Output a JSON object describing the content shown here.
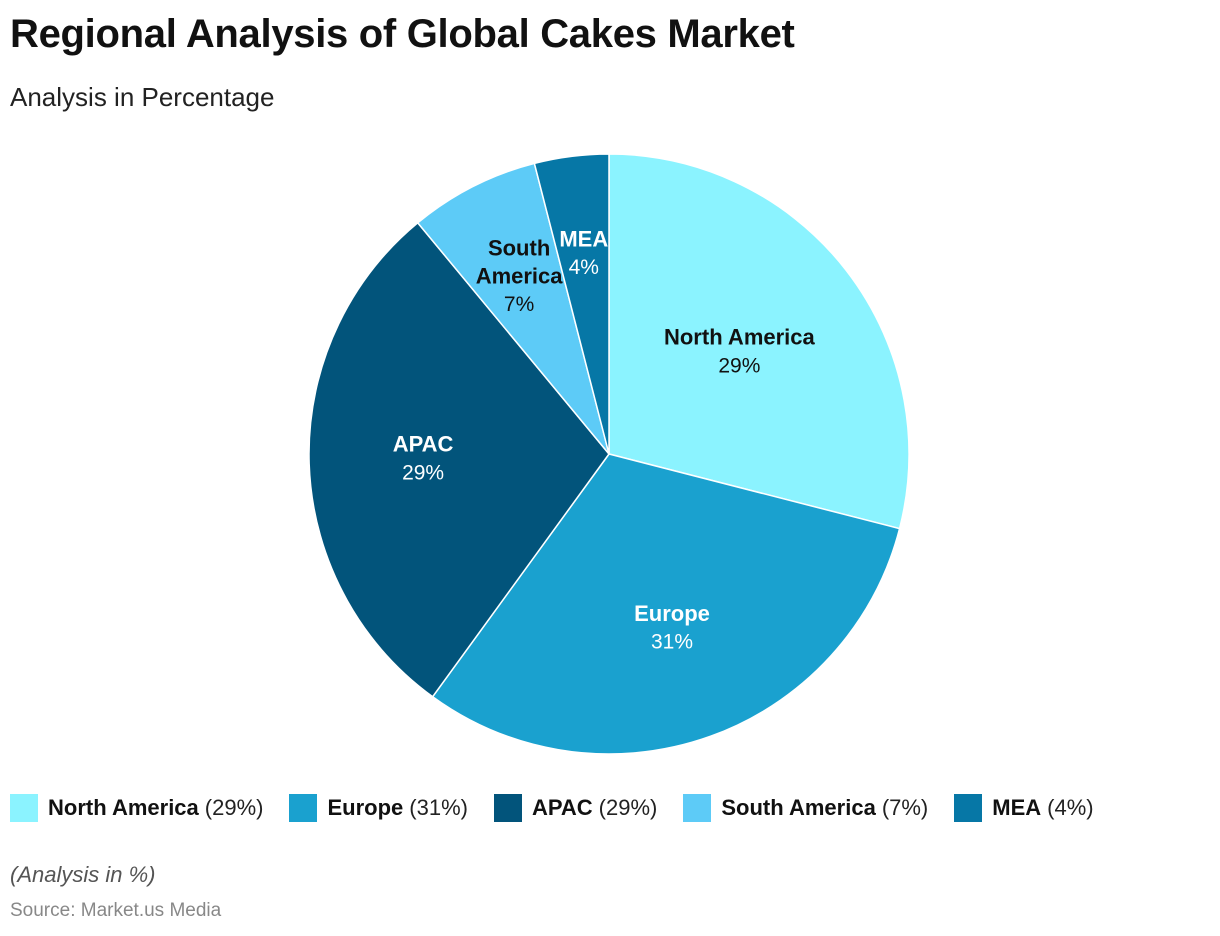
{
  "chart_data": {
    "type": "pie",
    "title": "Regional Analysis of Global Cakes Market",
    "subtitle": "Analysis in Percentage",
    "unit": "%",
    "slices": [
      {
        "name": "North America",
        "value": 29,
        "color": "#8BF3FF",
        "label_color": "#111111"
      },
      {
        "name": "Europe",
        "value": 31,
        "color": "#1AA1CF",
        "label_color": "#ffffff"
      },
      {
        "name": "APAC",
        "value": 29,
        "color": "#02547B",
        "label_color": "#ffffff"
      },
      {
        "name": "South America",
        "value": 7,
        "color": "#5DCBF7",
        "label_color": "#111111"
      },
      {
        "name": "MEA",
        "value": 4,
        "color": "#0677A6",
        "label_color": "#ffffff"
      }
    ],
    "legend_placement": "bottom"
  },
  "footer": {
    "note": "(Analysis in %)",
    "source": "Source: Market.us Media"
  }
}
